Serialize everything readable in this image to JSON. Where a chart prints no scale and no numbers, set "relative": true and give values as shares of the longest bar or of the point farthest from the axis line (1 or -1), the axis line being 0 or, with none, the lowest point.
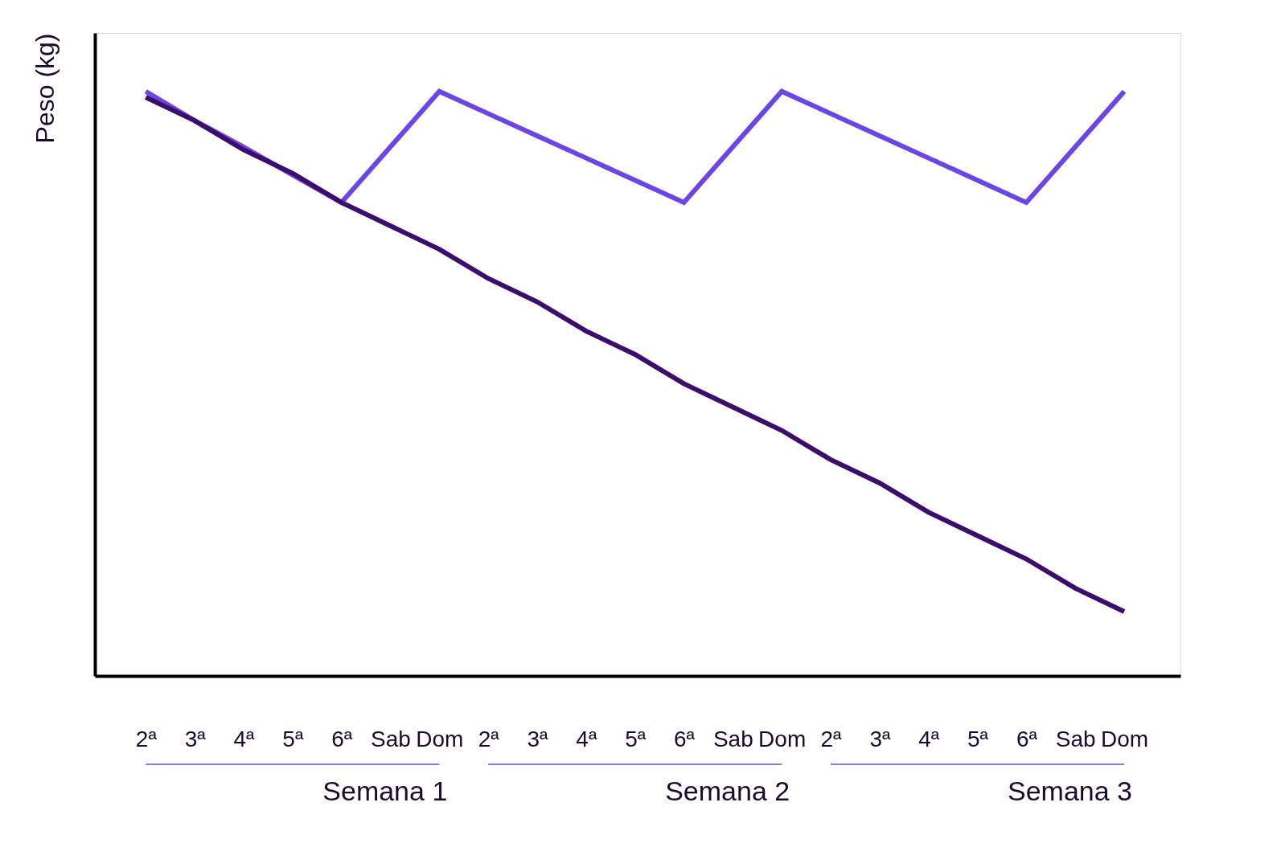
{
  "chart_data": {
    "type": "line",
    "relative": true,
    "ylabel": "Peso (kg)",
    "categories": [
      "2ª",
      "3ª",
      "4ª",
      "5ª",
      "6ª",
      "Sab",
      "Dom",
      "2ª",
      "3ª",
      "4ª",
      "5ª",
      "6ª",
      "Sab",
      "Dom",
      "2ª",
      "3ª",
      "4ª",
      "5ª",
      "6ª",
      "Sab",
      "Dom"
    ],
    "series": [
      {
        "color": "#6b45e8",
        "values": [
          1.0,
          0.95,
          0.905,
          0.857,
          0.81,
          0.905,
          1.0,
          0.962,
          0.924,
          0.886,
          0.848,
          0.81,
          0.905,
          1.0,
          0.962,
          0.924,
          0.886,
          0.848,
          0.81,
          0.905,
          1.0
        ]
      },
      {
        "color": "#3d0d6e",
        "values": [
          0.99,
          0.95,
          0.9,
          0.86,
          0.81,
          0.77,
          0.73,
          0.68,
          0.64,
          0.59,
          0.55,
          0.5,
          0.46,
          0.42,
          0.37,
          0.33,
          0.28,
          0.24,
          0.2,
          0.15,
          0.11
        ]
      }
    ],
    "annotations": [
      "Semana 1",
      "Semana 2",
      "Semana 3"
    ],
    "grid": false,
    "legend": false
  }
}
